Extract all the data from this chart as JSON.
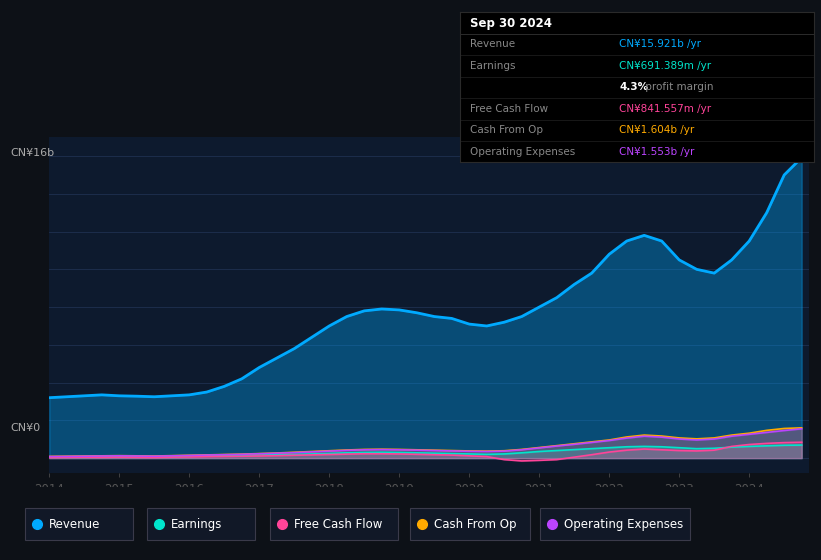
{
  "bg_color": "#0d1117",
  "plot_bg_color": "#0d1a2e",
  "grid_color": "#1e3050",
  "revenue_color": "#00aaff",
  "earnings_color": "#00e5cc",
  "fcf_color": "#ff4499",
  "cashop_color": "#ffaa00",
  "opex_color": "#bb44ff",
  "x_years": [
    2014.0,
    2014.25,
    2014.5,
    2014.75,
    2015.0,
    2015.25,
    2015.5,
    2015.75,
    2016.0,
    2016.25,
    2016.5,
    2016.75,
    2017.0,
    2017.25,
    2017.5,
    2017.75,
    2018.0,
    2018.25,
    2018.5,
    2018.75,
    2019.0,
    2019.25,
    2019.5,
    2019.75,
    2020.0,
    2020.25,
    2020.5,
    2020.75,
    2021.0,
    2021.25,
    2021.5,
    2021.75,
    2022.0,
    2022.25,
    2022.5,
    2022.75,
    2023.0,
    2023.25,
    2023.5,
    2023.75,
    2024.0,
    2024.25,
    2024.5,
    2024.75
  ],
  "revenue": [
    3.2,
    3.25,
    3.3,
    3.35,
    3.3,
    3.28,
    3.25,
    3.3,
    3.35,
    3.5,
    3.8,
    4.2,
    4.8,
    5.3,
    5.8,
    6.4,
    7.0,
    7.5,
    7.8,
    7.9,
    7.85,
    7.7,
    7.5,
    7.4,
    7.1,
    7.0,
    7.2,
    7.5,
    8.0,
    8.5,
    9.2,
    9.8,
    10.8,
    11.5,
    11.8,
    11.5,
    10.5,
    10.0,
    9.8,
    10.5,
    11.5,
    13.0,
    15.0,
    15.921
  ],
  "earnings": [
    0.05,
    0.06,
    0.07,
    0.08,
    0.09,
    0.08,
    0.07,
    0.09,
    0.1,
    0.12,
    0.13,
    0.14,
    0.16,
    0.18,
    0.2,
    0.22,
    0.25,
    0.28,
    0.3,
    0.31,
    0.3,
    0.28,
    0.26,
    0.24,
    0.22,
    0.2,
    0.22,
    0.28,
    0.35,
    0.4,
    0.45,
    0.5,
    0.55,
    0.6,
    0.62,
    0.6,
    0.55,
    0.5,
    0.52,
    0.58,
    0.62,
    0.65,
    0.68,
    0.691
  ],
  "free_cash_flow": [
    0.03,
    0.04,
    0.05,
    0.04,
    0.05,
    0.04,
    0.03,
    0.05,
    0.06,
    0.08,
    0.09,
    0.1,
    0.11,
    0.13,
    0.15,
    0.17,
    0.19,
    0.21,
    0.23,
    0.23,
    0.22,
    0.2,
    0.18,
    0.16,
    0.12,
    0.08,
    -0.08,
    -0.15,
    -0.12,
    -0.08,
    0.05,
    0.18,
    0.32,
    0.42,
    0.48,
    0.44,
    0.4,
    0.38,
    0.42,
    0.62,
    0.72,
    0.78,
    0.82,
    0.841
  ],
  "cash_from_op": [
    0.09,
    0.1,
    0.11,
    0.12,
    0.13,
    0.12,
    0.11,
    0.13,
    0.15,
    0.17,
    0.19,
    0.21,
    0.24,
    0.27,
    0.31,
    0.35,
    0.39,
    0.43,
    0.46,
    0.47,
    0.46,
    0.44,
    0.42,
    0.4,
    0.38,
    0.37,
    0.39,
    0.46,
    0.56,
    0.66,
    0.76,
    0.86,
    0.96,
    1.12,
    1.22,
    1.17,
    1.07,
    1.02,
    1.07,
    1.22,
    1.32,
    1.47,
    1.57,
    1.604
  ],
  "operating_expenses": [
    0.08,
    0.09,
    0.1,
    0.11,
    0.12,
    0.11,
    0.1,
    0.12,
    0.14,
    0.16,
    0.18,
    0.2,
    0.23,
    0.26,
    0.29,
    0.33,
    0.37,
    0.41,
    0.44,
    0.45,
    0.44,
    0.42,
    0.4,
    0.38,
    0.36,
    0.35,
    0.37,
    0.44,
    0.54,
    0.64,
    0.73,
    0.83,
    0.93,
    1.06,
    1.16,
    1.11,
    1.01,
    0.96,
    1.01,
    1.16,
    1.26,
    1.36,
    1.46,
    1.553
  ],
  "ylabel_top": "CN¥16b",
  "ylabel_zero": "CN¥0",
  "x_ticks": [
    2014,
    2015,
    2016,
    2017,
    2018,
    2019,
    2020,
    2021,
    2022,
    2023,
    2024
  ],
  "ylim_min": -0.8,
  "ylim_max": 17.0,
  "legend": [
    "Revenue",
    "Earnings",
    "Free Cash Flow",
    "Cash From Op",
    "Operating Expenses"
  ],
  "tooltip_title": "Sep 30 2024",
  "tooltip_rows": [
    {
      "label": "Revenue",
      "value": "CN¥15.921b /yr",
      "color": "#00aaff"
    },
    {
      "label": "Earnings",
      "value": "CN¥691.389m /yr",
      "color": "#00e5cc"
    },
    {
      "label": "",
      "value": "4.3% profit margin",
      "color": "mixed"
    },
    {
      "label": "Free Cash Flow",
      "value": "CN¥841.557m /yr",
      "color": "#ff4499"
    },
    {
      "label": "Cash From Op",
      "value": "CN¥1.604b /yr",
      "color": "#ffaa00"
    },
    {
      "label": "Operating Expenses",
      "value": "CN¥1.553b /yr",
      "color": "#bb44ff"
    }
  ]
}
